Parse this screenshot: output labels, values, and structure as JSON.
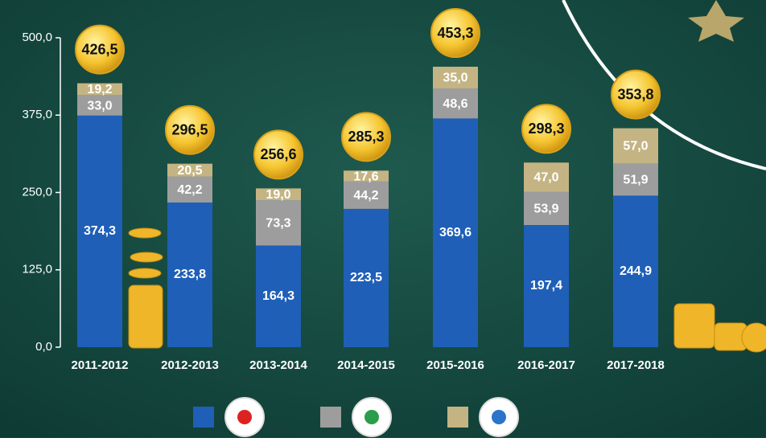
{
  "chart_data": {
    "type": "stacked_bar",
    "categories": [
      "2011-2012",
      "2012-2013",
      "2013-2014",
      "2014-2015",
      "2015-2016",
      "2016-2017",
      "2017-2018"
    ],
    "series": [
      {
        "color": "#1f5fb8",
        "values": [
          374.3,
          233.8,
          164.3,
          223.5,
          369.6,
          197.4,
          244.9
        ],
        "value_labels": [
          "374,3",
          "233,8",
          "164,3",
          "223,5",
          "369,6",
          "197,4",
          "244,9"
        ]
      },
      {
        "color": "#9d9d9d",
        "values": [
          33.0,
          42.2,
          73.3,
          44.2,
          48.6,
          53.9,
          51.9
        ],
        "value_labels": [
          "33,0",
          "42,2",
          "73,3",
          "44,2",
          "48,6",
          "53,9",
          "51,9"
        ]
      },
      {
        "color": "#c4b483",
        "values": [
          19.2,
          20.5,
          19.0,
          17.6,
          35.0,
          47.0,
          57.0
        ],
        "value_labels": [
          "19,2",
          "20,5",
          "19,0",
          "17,6",
          "35,0",
          "47,0",
          "57,0"
        ]
      }
    ],
    "totals": {
      "values": [
        426.5,
        296.5,
        256.6,
        285.3,
        453.3,
        298.3,
        353.8
      ],
      "value_labels": [
        "426,5",
        "296,5",
        "256,6",
        "285,3",
        "453,3",
        "298,3",
        "353,8"
      ]
    },
    "ylim": [
      0,
      500
    ],
    "yticks": [
      {
        "value": 0,
        "label": "0,0"
      },
      {
        "value": 125,
        "label": "125,0"
      },
      {
        "value": 250,
        "label": "250,0"
      },
      {
        "value": 375,
        "label": "375,0"
      },
      {
        "value": 500,
        "label": "500,0"
      }
    ]
  }
}
